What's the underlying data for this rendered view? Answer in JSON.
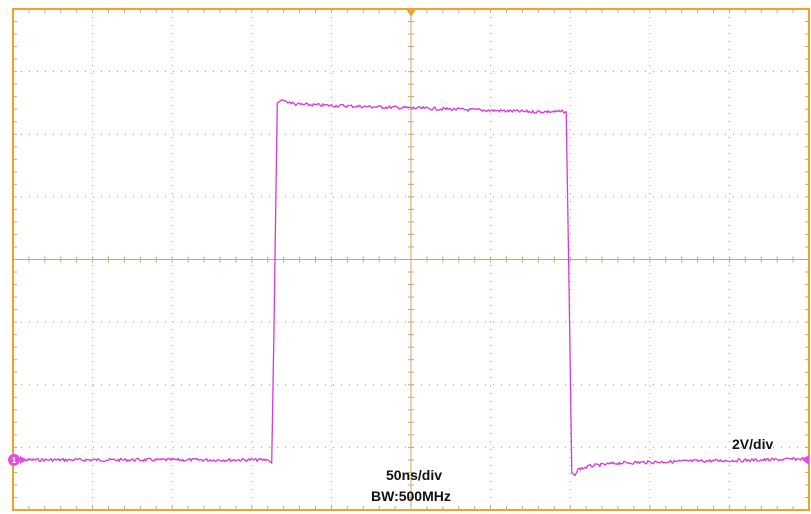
{
  "colors": {
    "frame": "#f0a12a",
    "grid_dot": "#9a9a9a",
    "axis_tick": "#c8a86a",
    "trace": "#d43ad8",
    "ch1_marker": "#e24ce0",
    "trigger_marker": "#f0a12a"
  },
  "labels": {
    "timebase": "50ns/div",
    "bandwidth": "BW:500MHz",
    "vertical_scale": "2V/div",
    "channel_marker": "1"
  },
  "icons": {
    "trigger_position": "trigger-marker-icon",
    "channel_ground": "channel-ground-marker-icon",
    "trigger_level": "trigger-level-arrow-icon"
  },
  "chart_data": {
    "type": "line",
    "x_unit": "div",
    "y_unit": "div",
    "xlim": [
      -5,
      5
    ],
    "ylim": [
      -4,
      4
    ],
    "grid": true,
    "x_divisions": 10,
    "y_divisions": 8,
    "timebase": "50ns/div",
    "vertical_scale": "2V/div",
    "bandwidth": "BW:500MHz",
    "series": [
      {
        "x": [
          -5.0,
          -1.8,
          -1.75,
          -1.72,
          -1.68,
          -1.62,
          -1.55,
          -1.45,
          -1.3,
          0.0,
          1.5,
          1.95,
          1.98,
          2.02,
          2.06,
          2.1,
          2.25,
          2.6,
          3.5,
          4.5,
          5.0
        ],
        "y": [
          -3.2,
          -3.2,
          -3.25,
          -1.0,
          2.5,
          2.55,
          2.52,
          2.48,
          2.47,
          2.42,
          2.36,
          2.36,
          0.0,
          -3.4,
          -3.45,
          -3.35,
          -3.3,
          -3.25,
          -3.22,
          -3.2,
          -3.18
        ]
      }
    ]
  }
}
